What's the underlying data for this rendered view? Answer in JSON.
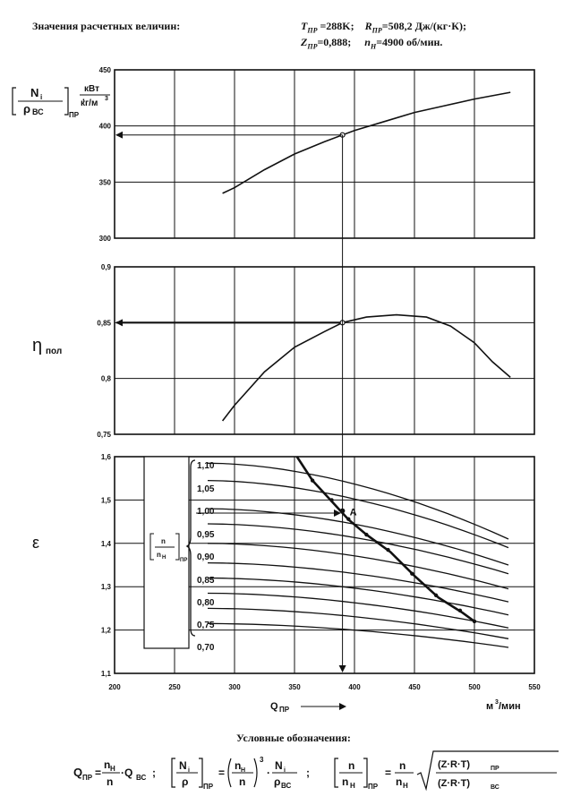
{
  "header": {
    "title": "Значения расчетных величин:",
    "params_line1": "Tₙр =288K;    Rₙр=508,2 Дж/(кг·К);",
    "params_line2": "Zₙр=0,888;     nₙ=4900 об/мин."
  },
  "header_display": {
    "T": "T",
    "T_sub": "ПР",
    "T_val": "=288K;",
    "R": "R",
    "R_sub": "ПР",
    "R_val": "=508,2 Дж/(кг·К);",
    "Z": "Z",
    "Z_sub": "ПР",
    "Z_val": "=0,888;",
    "n": "n",
    "n_sub": "Н",
    "n_val": "=4900 об/мин."
  },
  "chart_data": [
    {
      "type": "line",
      "id": "power",
      "ylabel": "[Ni/ρВС]ПР , кВт/(кг/м³)",
      "ylabel_parts": {
        "num": "N",
        "num_sub": "i",
        "den": "ρ",
        "den_sub": "ВС",
        "sub": "ПР",
        "unit_num": "кВт",
        "unit_den": "кг/м",
        "unit_exp": "3"
      },
      "ylim": [
        300,
        450
      ],
      "yticks": [
        300,
        350,
        400,
        450
      ],
      "xlim": [
        200,
        550
      ],
      "grid": true,
      "series": [
        {
          "x": [
            290,
            300,
            325,
            350,
            375,
            400,
            425,
            450,
            475,
            500,
            530
          ],
          "y": [
            340,
            345,
            361,
            375,
            386,
            396,
            404,
            412,
            418,
            424,
            430
          ]
        }
      ],
      "reading": {
        "x": 390,
        "y": 392
      }
    },
    {
      "type": "line",
      "id": "efficiency",
      "ylabel": "ηпол",
      "ylabel_parts": {
        "sym": "η",
        "sub": "пол"
      },
      "ylim": [
        0.75,
        0.9
      ],
      "yticks": [
        0.75,
        0.8,
        0.85,
        0.9
      ],
      "ytick_labels": [
        "0,75",
        "0,8",
        "0,85",
        "0,9"
      ],
      "xlim": [
        200,
        550
      ],
      "grid": true,
      "series": [
        {
          "x": [
            290,
            300,
            325,
            350,
            375,
            390,
            410,
            435,
            460,
            480,
            500,
            515,
            530
          ],
          "y": [
            0.762,
            0.776,
            0.806,
            0.828,
            0.842,
            0.85,
            0.855,
            0.857,
            0.855,
            0.847,
            0.832,
            0.815,
            0.801
          ]
        }
      ],
      "reading": {
        "x": 390,
        "y": 0.85
      }
    },
    {
      "type": "line",
      "id": "pressure-ratio",
      "ylabel": "ε",
      "ylim": [
        1.1,
        1.6
      ],
      "yticks": [
        1.1,
        1.2,
        1.3,
        1.4,
        1.5,
        1.6
      ],
      "ytick_labels": [
        "1,1",
        "1,2",
        "1,3",
        "1,4",
        "1,5",
        "1,6"
      ],
      "xlim": [
        200,
        550
      ],
      "xticks": [
        200,
        250,
        300,
        350,
        400,
        450,
        500,
        550
      ],
      "xlabel": "QПР",
      "x_unit": "м³/мин",
      "grid": true,
      "speed_label": "[n/nН]ПР",
      "speed_parts": {
        "num": "n",
        "den": "n",
        "den_sub": "Н",
        "sub": "ПР"
      },
      "speed_lines": [
        {
          "name": "1,10",
          "y0": 1.585,
          "drop": 0.175
        },
        {
          "name": "1,05",
          "y0": 1.545,
          "drop": 0.155
        },
        {
          "name": "1,00",
          "y0": 1.48,
          "drop": 0.13
        },
        {
          "name": "0,95",
          "y0": 1.445,
          "drop": 0.115
        },
        {
          "name": "0,90",
          "y0": 1.4,
          "drop": 0.105
        },
        {
          "name": "0,85",
          "y0": 1.355,
          "drop": 0.09
        },
        {
          "name": "0,80",
          "y0": 1.32,
          "drop": 0.085
        },
        {
          "name": "0,75",
          "y0": 1.285,
          "drop": 0.08
        },
        {
          "name": "0,70",
          "y0": 1.25,
          "drop": 0.07
        },
        {
          "name": "",
          "y0": 1.215,
          "drop": 0.055
        }
      ],
      "surge_line": {
        "x": [
          352,
          365,
          380,
          395,
          410,
          430,
          450,
          470,
          490,
          500
        ],
        "y": [
          1.6,
          1.545,
          1.5,
          1.455,
          1.42,
          1.38,
          1.325,
          1.275,
          1.24,
          1.22
        ]
      },
      "operating_point": {
        "label": "A",
        "x": 390,
        "y": 1.475
      }
    }
  ],
  "legend_title": "Условные обозначения:",
  "formulas": {
    "f1_lhs": "Q",
    "f1_lhs_sub": "ПР",
    "f1_num": "n",
    "f1_num_sub": "Н",
    "f1_den": "n",
    "f1_rhs": "·Q",
    "f1_rhs_sub": "ВС",
    "f2_lhs_num": "N",
    "f2_lhs_num_sub": "i",
    "f2_lhs_den": "ρ",
    "f2_lhs_sub": "ПР",
    "f2_num": "n",
    "f2_num_sub": "Н",
    "f2_den": "n",
    "f2_exp": "3",
    "f2_r_num": "N",
    "f2_r_num_sub": "i",
    "f2_r_den": "ρ",
    "f2_r_den_sub": "ВС",
    "f3_lhs_num": "n",
    "f3_lhs_den": "n",
    "f3_lhs_den_sub": "Н",
    "f3_lhs_sub": "ПР",
    "f3_num": "n",
    "f3_den": "n",
    "f3_den_sub": "Н",
    "f3_root_num": "(Z·R·T)",
    "f3_root_num_sub": "ПР",
    "f3_root_den": "(Z·R·T)",
    "f3_root_den_sub": "ВС"
  }
}
